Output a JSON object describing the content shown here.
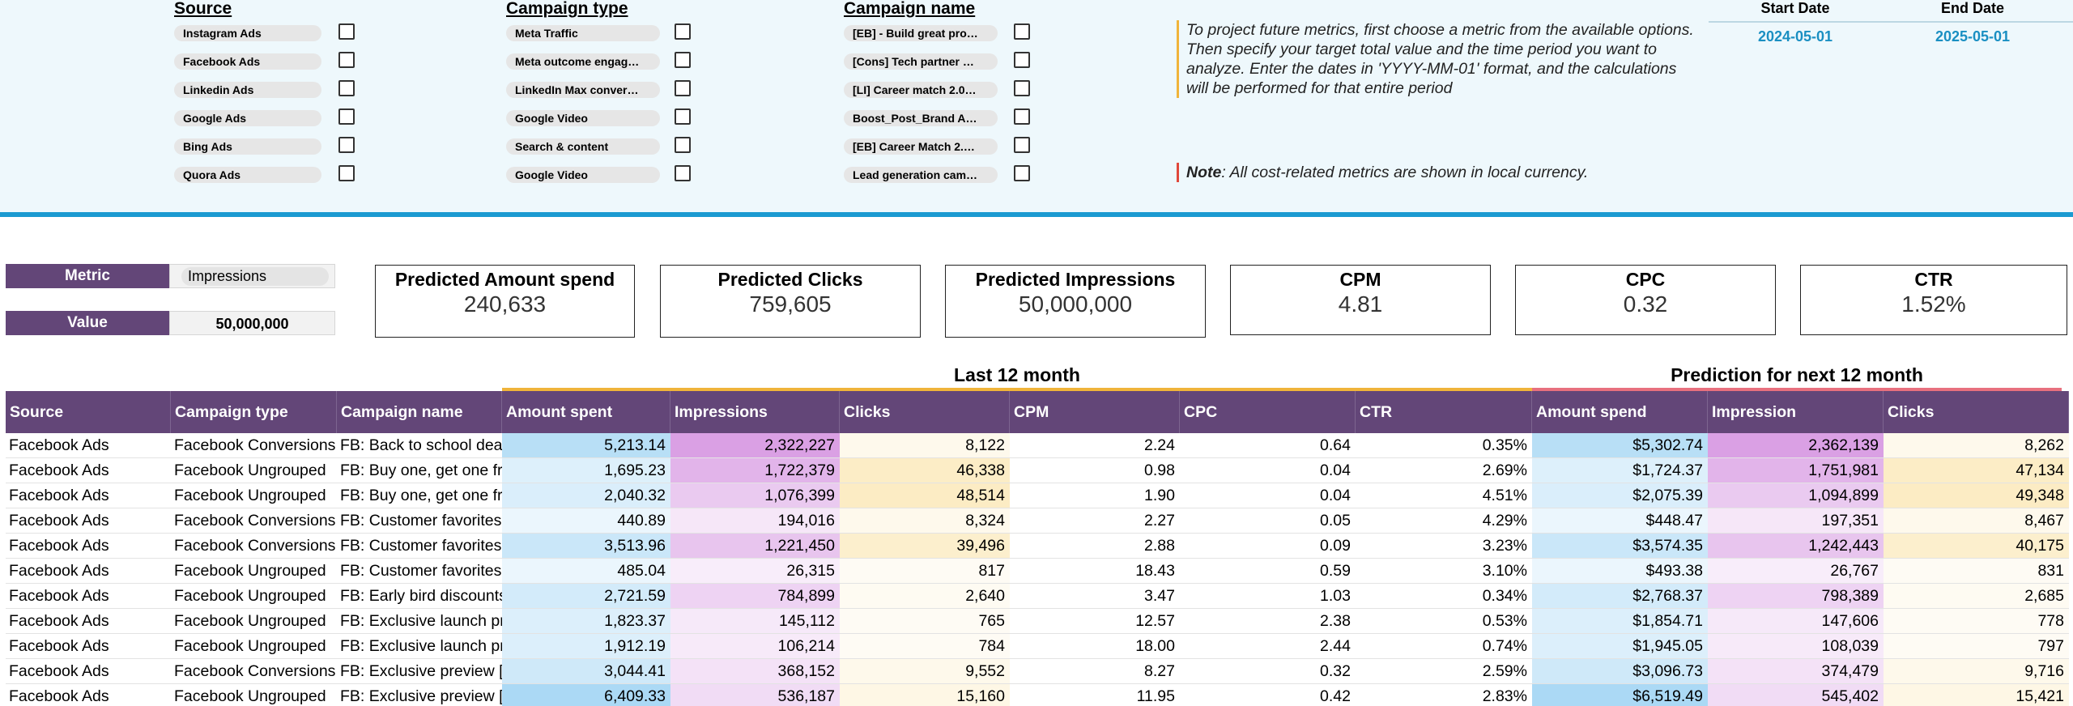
{
  "filters": {
    "source": {
      "title": "Source",
      "items": [
        "Instagram Ads",
        "Facebook Ads",
        "Linkedin Ads",
        "Google Ads",
        "Bing Ads",
        "Quora Ads"
      ]
    },
    "campaign_type": {
      "title": "Campaign type",
      "items": [
        "Meta Traffic",
        "Meta outcome engag…",
        "LinkedIn Max conver…",
        "Google Video",
        "Search & content",
        "Google Video"
      ]
    },
    "campaign_name": {
      "title": "Campaign name",
      "items": [
        "[EB] - Build great pro…",
        "[Cons] Tech partner …",
        "[LI] Career match 2.0…",
        "Boost_Post_Brand A…",
        "[EB] Career Match 2.…",
        "Lead generation cam…"
      ]
    }
  },
  "notes": {
    "instruction": "To project future metrics, first choose a metric from the available options. Then specify your target total value and the time period you want to analyze. Enter the dates in 'YYYY-MM-01' format, and the calculations will be performed for that entire period",
    "currency_label": "Note",
    "currency_text": ": All cost-related metrics are shown in local currency."
  },
  "dates": {
    "start_label": "Start Date",
    "end_label": "End Date",
    "start": "2024-05-01",
    "end": "2025-05-01"
  },
  "controls": {
    "metric_label": "Metric",
    "metric_value": "Impressions",
    "value_label": "Value",
    "value": "50,000,000"
  },
  "kpis": [
    {
      "title": "Predicted Amount spend",
      "value": "240,633"
    },
    {
      "title": "Predicted Clicks",
      "value": "759,605"
    },
    {
      "title": "Predicted Impressions",
      "value": "50,000,000"
    },
    {
      "title": "CPM",
      "value": "4.81"
    },
    {
      "title": "CPC",
      "value": "0.32"
    },
    {
      "title": "CTR",
      "value": "1.52%"
    }
  ],
  "sections": {
    "last": "Last 12 month",
    "prediction": "Prediction for next 12 month"
  },
  "table": {
    "columns": [
      "Source",
      "Campaign type",
      "Campaign name",
      "Amount spent",
      "Impressions",
      "Clicks",
      "CPM",
      "CPC",
      "CTR",
      "Amount spend",
      "Impression",
      "Clicks"
    ],
    "rows": [
      [
        "Facebook Ads",
        "Facebook Conversions",
        "FB: Back to school deal",
        "5,213.14",
        "2,322,227",
        "8,122",
        "2.24",
        "0.64",
        "0.35%",
        "$5,302.74",
        "2,362,139",
        "8,262"
      ],
      [
        "Facebook Ads",
        "Facebook Ungrouped",
        "FB: Buy one, get one free",
        "1,695.23",
        "1,722,379",
        "46,338",
        "0.98",
        "0.04",
        "2.69%",
        "$1,724.37",
        "1,751,981",
        "47,134"
      ],
      [
        "Facebook Ads",
        "Facebook Ungrouped",
        "FB: Buy one, get one free",
        "2,040.32",
        "1,076,399",
        "48,514",
        "1.90",
        "0.04",
        "4.51%",
        "$2,075.39",
        "1,094,899",
        "49,348"
      ],
      [
        "Facebook Ads",
        "Facebook Conversions",
        "FB: Customer favorites |",
        "440.89",
        "194,016",
        "8,324",
        "2.27",
        "0.05",
        "4.29%",
        "$448.47",
        "197,351",
        "8,467"
      ],
      [
        "Facebook Ads",
        "Facebook Conversions",
        "FB: Customer favorites |",
        "3,513.96",
        "1,221,450",
        "39,496",
        "2.88",
        "0.09",
        "3.23%",
        "$3,574.35",
        "1,242,443",
        "40,175"
      ],
      [
        "Facebook Ads",
        "Facebook Ungrouped",
        "FB: Customer favorites |",
        "485.04",
        "26,315",
        "817",
        "18.43",
        "0.59",
        "3.10%",
        "$493.38",
        "26,767",
        "831"
      ],
      [
        "Facebook Ads",
        "Facebook Ungrouped",
        "FB: Early bird discounts",
        "2,721.59",
        "784,899",
        "2,640",
        "3.47",
        "1.03",
        "0.34%",
        "$2,768.37",
        "798,389",
        "2,685"
      ],
      [
        "Facebook Ads",
        "Facebook Ungrouped",
        "FB: Exclusive launch pri",
        "1,823.37",
        "145,112",
        "765",
        "12.57",
        "2.38",
        "0.53%",
        "$1,854.71",
        "147,606",
        "778"
      ],
      [
        "Facebook Ads",
        "Facebook Ungrouped",
        "FB: Exclusive launch pri",
        "1,912.19",
        "106,214",
        "784",
        "18.00",
        "2.44",
        "0.74%",
        "$1,945.05",
        "108,039",
        "797"
      ],
      [
        "Facebook Ads",
        "Facebook Conversions",
        "FB: Exclusive preview [T",
        "3,044.41",
        "368,152",
        "9,552",
        "8.27",
        "0.32",
        "2.59%",
        "$3,096.73",
        "374,479",
        "9,716"
      ],
      [
        "Facebook Ads",
        "Facebook Ungrouped",
        "FB: Exclusive preview [T",
        "6,409.33",
        "536,187",
        "15,160",
        "11.95",
        "0.42",
        "2.83%",
        "$6,519.49",
        "545,402",
        "15,421"
      ]
    ]
  },
  "colors": {
    "header_purple": "#634678",
    "accent_blue": "#1b9ad1",
    "section_last_line": "#f0b43a",
    "section_pred_line": "#e8707e",
    "spend_shade": "#b9def6",
    "impr_shade": "#dba9e6",
    "clicks_shade": "#fbeeca"
  }
}
